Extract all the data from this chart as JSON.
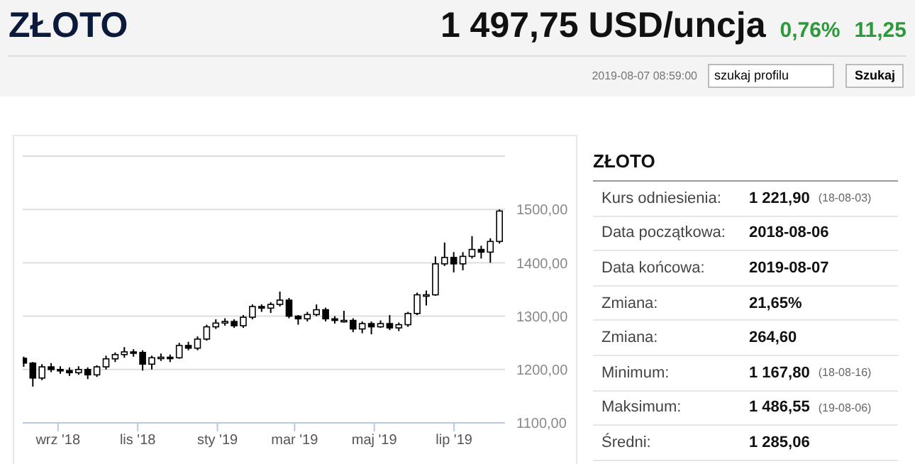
{
  "chart_data": [
    {
      "type": "candlestick",
      "title": "ZŁOTO",
      "subtitle": "1 497,75 USD/uncja",
      "annotations": [
        "0,76%",
        "11,25",
        "2019-08-07 08:59:00",
        "szukaj profilu",
        "Szukaj"
      ],
      "color": "#000000",
      "x": [
        "2018-08-06",
        "2018-08-13",
        "2018-08-20",
        "2018-08-27",
        "2018-09-03",
        "2018-09-10",
        "2018-09-17",
        "2018-09-24",
        "2018-10-01",
        "2018-10-08",
        "2018-10-15",
        "2018-10-22",
        "2018-10-29",
        "2018-11-05",
        "2018-11-12",
        "2018-11-19",
        "2018-11-26",
        "2018-12-03",
        "2018-12-10",
        "2018-12-17",
        "2018-12-24",
        "2018-12-31",
        "2019-01-07",
        "2019-01-14",
        "2019-01-21",
        "2019-01-28",
        "2019-02-04",
        "2019-02-11",
        "2019-02-18",
        "2019-02-25",
        "2019-03-04",
        "2019-03-11",
        "2019-03-18",
        "2019-03-25",
        "2019-04-01",
        "2019-04-08",
        "2019-04-15",
        "2019-04-22",
        "2019-04-29",
        "2019-05-06",
        "2019-05-13",
        "2019-05-20",
        "2019-05-27",
        "2019-06-03",
        "2019-06-10",
        "2019-06-17",
        "2019-06-24",
        "2019-07-01",
        "2019-07-08",
        "2019-07-15",
        "2019-07-22",
        "2019-07-29",
        "2019-08-05"
      ],
      "ohlc": [
        [
          1221,
          1224,
          1205,
          1212
        ],
        [
          1212,
          1214,
          1168,
          1184
        ],
        [
          1184,
          1210,
          1180,
          1205
        ],
        [
          1205,
          1212,
          1195,
          1200
        ],
        [
          1200,
          1206,
          1192,
          1198
        ],
        [
          1198,
          1204,
          1188,
          1194
        ],
        [
          1194,
          1206,
          1190,
          1200
        ],
        [
          1200,
          1204,
          1182,
          1190
        ],
        [
          1190,
          1208,
          1186,
          1205
        ],
        [
          1205,
          1226,
          1200,
          1220
        ],
        [
          1220,
          1232,
          1214,
          1228
        ],
        [
          1228,
          1242,
          1222,
          1233
        ],
        [
          1233,
          1238,
          1224,
          1232
        ],
        [
          1232,
          1236,
          1198,
          1210
        ],
        [
          1210,
          1226,
          1200,
          1222
        ],
        [
          1222,
          1230,
          1216,
          1223
        ],
        [
          1223,
          1228,
          1214,
          1222
        ],
        [
          1222,
          1250,
          1220,
          1245
        ],
        [
          1245,
          1252,
          1236,
          1240
        ],
        [
          1240,
          1262,
          1236,
          1257
        ],
        [
          1257,
          1284,
          1254,
          1280
        ],
        [
          1280,
          1294,
          1276,
          1287
        ],
        [
          1287,
          1296,
          1282,
          1290
        ],
        [
          1290,
          1294,
          1278,
          1282
        ],
        [
          1282,
          1302,
          1278,
          1298
        ],
        [
          1298,
          1322,
          1294,
          1318
        ],
        [
          1318,
          1322,
          1308,
          1315
        ],
        [
          1315,
          1326,
          1306,
          1322
        ],
        [
          1322,
          1346,
          1318,
          1330
        ],
        [
          1330,
          1334,
          1296,
          1300
        ],
        [
          1300,
          1302,
          1284,
          1295
        ],
        [
          1295,
          1308,
          1290,
          1303
        ],
        [
          1303,
          1322,
          1300,
          1312
        ],
        [
          1312,
          1316,
          1290,
          1295
        ],
        [
          1295,
          1300,
          1286,
          1292
        ],
        [
          1292,
          1310,
          1288,
          1292
        ],
        [
          1292,
          1296,
          1270,
          1276
        ],
        [
          1276,
          1290,
          1268,
          1286
        ],
        [
          1286,
          1290,
          1266,
          1280
        ],
        [
          1280,
          1292,
          1278,
          1286
        ],
        [
          1286,
          1302,
          1274,
          1278
        ],
        [
          1278,
          1288,
          1272,
          1284
        ],
        [
          1284,
          1308,
          1280,
          1305
        ],
        [
          1305,
          1344,
          1302,
          1340
        ],
        [
          1340,
          1348,
          1320,
          1340
        ],
        [
          1340,
          1412,
          1338,
          1398
        ],
        [
          1398,
          1438,
          1394,
          1410
        ],
        [
          1410,
          1420,
          1382,
          1398
        ],
        [
          1398,
          1420,
          1386,
          1412
        ],
        [
          1412,
          1450,
          1408,
          1425
        ],
        [
          1425,
          1432,
          1408,
          1420
        ],
        [
          1420,
          1446,
          1400,
          1440
        ],
        [
          1440,
          1500,
          1436,
          1497
        ]
      ],
      "xlim": [
        "2018-08-05",
        "2019-08-09"
      ],
      "xticks": [
        {
          "value": "2018-09-01",
          "label": "wrz '18"
        },
        {
          "value": "2018-11-01",
          "label": "lis '18"
        },
        {
          "value": "2019-01-01",
          "label": "sty '19"
        },
        {
          "value": "2019-03-01",
          "label": "mar '19"
        },
        {
          "value": "2019-05-01",
          "label": "maj '19"
        },
        {
          "value": "2019-07-01",
          "label": "lip '19"
        }
      ],
      "ylim": [
        1100,
        1600
      ],
      "yticks": [
        {
          "value": 1100,
          "label": "1100,00"
        },
        {
          "value": 1200,
          "label": "1200,00"
        },
        {
          "value": 1300,
          "label": "1300,00"
        },
        {
          "value": 1400,
          "label": "1400,00"
        },
        {
          "value": 1500,
          "label": "1500,00"
        }
      ],
      "grid": "y"
    },
    {
      "type": "other",
      "title": "ZŁOTO",
      "cell_labels": [
        [
          "Kurs odniesienia:",
          "1 221,90",
          "(18-08-03)"
        ],
        [
          "Data początkowa:",
          "2018-08-06",
          null
        ],
        [
          "Data końcowa:",
          "2019-08-07",
          null
        ],
        [
          "Zmiana:",
          "21,65%",
          null
        ],
        [
          "Zmiana:",
          "264,60",
          null
        ],
        [
          "Minimum:",
          "1 167,80",
          "(18-08-16)"
        ],
        [
          "Maksimum:",
          "1 486,55",
          "(19-08-06)"
        ],
        [
          "Średni:",
          "1 285,06",
          null
        ]
      ]
    }
  ]
}
